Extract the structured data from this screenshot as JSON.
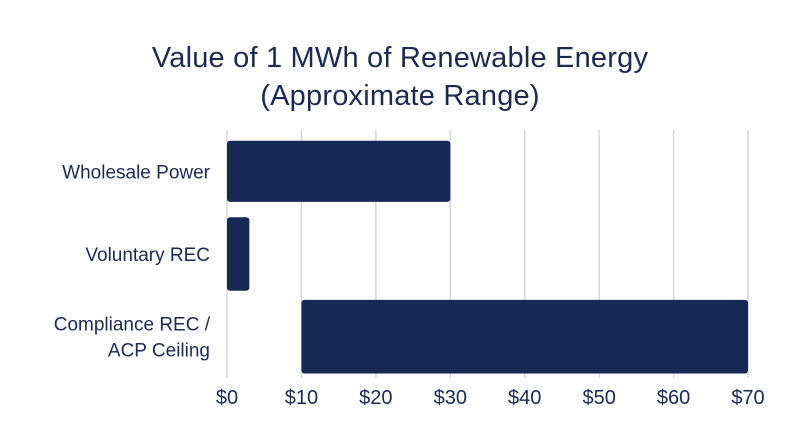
{
  "chart_data": {
    "type": "bar",
    "orientation": "horizontal",
    "title_lines": [
      "Value of 1 MWh of Renewable Energy",
      "(Approximate Range)"
    ],
    "categories": [
      [
        "Wholesale Power"
      ],
      [
        "Voluntary REC"
      ],
      [
        "Compliance REC /",
        "ACP Ceiling"
      ]
    ],
    "ranges": [
      [
        0,
        30
      ],
      [
        0,
        3
      ],
      [
        10,
        70
      ]
    ],
    "xlim": [
      0,
      70
    ],
    "x_ticks": [
      0,
      10,
      20,
      30,
      40,
      50,
      60,
      70
    ],
    "x_tick_labels": [
      "$0",
      "$10",
      "$20",
      "$30",
      "$40",
      "$50",
      "$60",
      "$70"
    ],
    "grid": "vertical",
    "bar_color": "#162955",
    "grid_color": "#d6d6d6",
    "text_color": "#1b2a52"
  }
}
